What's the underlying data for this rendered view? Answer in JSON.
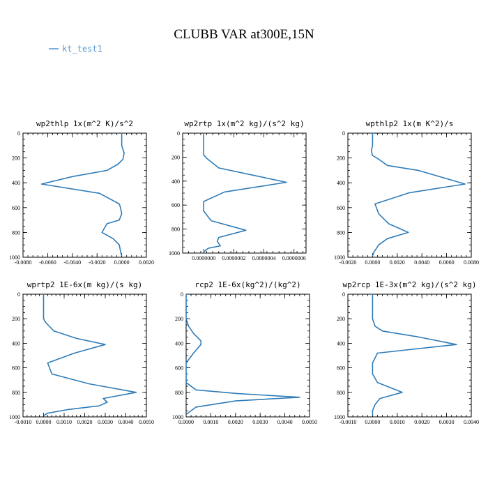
{
  "title": "CLUBB VAR at300E,15N",
  "legend": {
    "label": "kt_test1"
  },
  "colors": {
    "series": "#2f7cb8",
    "legend": "#5b9bd0"
  },
  "chart_data": [
    {
      "type": "line",
      "title": "wp2thlp  1x(m^2 K)/s^2",
      "series_name": "kt_test1",
      "xlim": [
        -0.008,
        0.002
      ],
      "ylim": [
        1000,
        0
      ],
      "x_ticks": [
        -0.008,
        -0.006,
        -0.004,
        -0.002,
        0,
        0.002
      ],
      "x_tick_labels": [
        "-0.0080",
        "-0.0060",
        "-0.0040",
        "-0.0020",
        "0.0000",
        "0.0020"
      ],
      "y_ticks": [
        0,
        200,
        400,
        600,
        800,
        1000
      ],
      "y_tick_labels": [
        "0",
        "200",
        "400",
        "600",
        "800",
        "1000"
      ],
      "x": [
        0.0,
        0.0,
        0.0002,
        0.0001,
        -0.0003,
        -0.0012,
        -0.004,
        -0.0065,
        -0.0018,
        -0.0002,
        -0.0001,
        0.0,
        -0.0002,
        -0.0012,
        -0.0016,
        -0.0007,
        -0.0002,
        -0.0001,
        0.0
      ],
      "y": [
        0,
        100,
        160,
        210,
        250,
        300,
        350,
        410,
        485,
        570,
        600,
        650,
        700,
        730,
        800,
        850,
        900,
        950,
        990
      ]
    },
    {
      "type": "line",
      "title": "wp2rtp  1x(m^2 kg)/(s^2 kg)",
      "series_name": "kt_test1",
      "xlim": [
        -1.4e-07,
        6.8e-07
      ],
      "ylim": [
        1000,
        0
      ],
      "x_ticks": [
        0,
        2e-07,
        4e-07,
        6e-07
      ],
      "x_tick_labels": [
        "0.0000000",
        "0.0000002",
        "0.0000004",
        "0.0000006"
      ],
      "y_ticks": [
        0,
        200,
        400,
        600,
        800,
        1000
      ],
      "y_tick_labels": [
        "0",
        "200",
        "400",
        "600",
        "800",
        "1000"
      ],
      "x": [
        0.0,
        0.0,
        0.0,
        2e-08,
        1e-07,
        5.5e-07,
        1.4e-07,
        0.0,
        0.0,
        5e-08,
        2.8e-07,
        1e-07,
        9e-08,
        1.1e-07,
        3e-08,
        0.0
      ],
      "y": [
        0,
        100,
        180,
        210,
        290,
        410,
        490,
        570,
        650,
        730,
        810,
        870,
        900,
        940,
        960,
        990
      ]
    },
    {
      "type": "line",
      "title": "wpthlp2  1x(m K^2)/s",
      "series_name": "kt_test1",
      "xlim": [
        -0.002,
        0.008
      ],
      "ylim": [
        1000,
        0
      ],
      "x_ticks": [
        -0.002,
        0,
        0.002,
        0.004,
        0.006,
        0.008
      ],
      "x_tick_labels": [
        "-0.0020",
        "0.0000",
        "0.0020",
        "0.0040",
        "0.0060",
        "0.0080"
      ],
      "y_ticks": [
        0,
        200,
        400,
        600,
        800,
        1000
      ],
      "y_tick_labels": [
        "0",
        "200",
        "400",
        "600",
        "800",
        "1000"
      ],
      "x": [
        0.0,
        0.0,
        -0.0001,
        0.0,
        0.0005,
        0.0012,
        0.0037,
        0.0075,
        0.003,
        0.0002,
        0.0005,
        0.0013,
        0.0029,
        0.0012,
        0.0005,
        0.0001,
        0.0
      ],
      "y": [
        0,
        100,
        140,
        180,
        210,
        260,
        300,
        410,
        480,
        570,
        650,
        730,
        800,
        850,
        900,
        960,
        990
      ]
    },
    {
      "type": "line",
      "title": "wprtp2  1E-6x(m kg)/(s kg)",
      "series_name": "kt_test1",
      "xlim": [
        -0.001,
        0.005
      ],
      "ylim": [
        1000,
        0
      ],
      "x_ticks": [
        -0.001,
        0,
        0.001,
        0.002,
        0.003,
        0.004,
        0.005
      ],
      "x_tick_labels": [
        "-0.0010",
        "0.0000",
        "0.0010",
        "0.0020",
        "0.0030",
        "0.0040",
        "0.0050"
      ],
      "y_ticks": [
        0,
        200,
        400,
        600,
        800,
        1000
      ],
      "y_tick_labels": [
        "0",
        "200",
        "400",
        "600",
        "800",
        "1000"
      ],
      "x": [
        0.0,
        0.0,
        0.0,
        0.0001,
        0.0005,
        0.0016,
        0.003,
        0.0015,
        0.0002,
        0.0004,
        0.0022,
        0.0045,
        0.0029,
        0.0031,
        0.0027,
        0.0012,
        0.0002,
        0.0
      ],
      "y": [
        0,
        100,
        200,
        230,
        300,
        360,
        410,
        480,
        560,
        650,
        730,
        800,
        850,
        880,
        910,
        940,
        970,
        990
      ]
    },
    {
      "type": "line",
      "title": "rcp2  1E-6x(kg^2)/(kg^2)",
      "series_name": "kt_test1",
      "xlim": [
        0,
        0.005
      ],
      "ylim": [
        1000,
        0
      ],
      "x_ticks": [
        0,
        0.001,
        0.002,
        0.003,
        0.004,
        0.005
      ],
      "x_tick_labels": [
        "0.0000",
        "0.0010",
        "0.0020",
        "0.0030",
        "0.0040",
        "0.0050"
      ],
      "y_ticks": [
        0,
        200,
        400,
        600,
        800,
        1000
      ],
      "y_tick_labels": [
        "0",
        "200",
        "400",
        "600",
        "800",
        "1000"
      ],
      "x": [
        0.0,
        0.0,
        0.0,
        0.0001,
        0.0003,
        0.0006,
        0.0006,
        0.0003,
        0.0,
        0.0,
        0.0,
        0.0004,
        0.0021,
        0.0046,
        0.002,
        0.0004,
        0.0
      ],
      "y": [
        0,
        100,
        200,
        260,
        320,
        380,
        410,
        480,
        560,
        650,
        720,
        780,
        810,
        840,
        870,
        920,
        980
      ]
    },
    {
      "type": "line",
      "title": "wp2rcp  1E-3x(m^2 kg)/(s^2 kg)",
      "series_name": "kt_test1",
      "xlim": [
        -0.001,
        0.004
      ],
      "ylim": [
        1000,
        0
      ],
      "x_ticks": [
        -0.001,
        0,
        0.001,
        0.002,
        0.003,
        0.004
      ],
      "x_tick_labels": [
        "-0.0010",
        "0.0000",
        "0.0010",
        "0.0020",
        "0.0030",
        "0.0040"
      ],
      "y_ticks": [
        0,
        200,
        400,
        600,
        800,
        1000
      ],
      "y_tick_labels": [
        "0",
        "200",
        "400",
        "600",
        "800",
        "1000"
      ],
      "x": [
        0.0,
        0.0,
        0.0,
        0.0001,
        0.0004,
        0.0019,
        0.0034,
        0.0002,
        0.0,
        0.0,
        0.0002,
        0.0012,
        0.0003,
        0.0001,
        0.0,
        0.0
      ],
      "y": [
        0,
        100,
        200,
        260,
        300,
        350,
        410,
        480,
        560,
        650,
        720,
        800,
        850,
        900,
        950,
        990
      ]
    }
  ]
}
